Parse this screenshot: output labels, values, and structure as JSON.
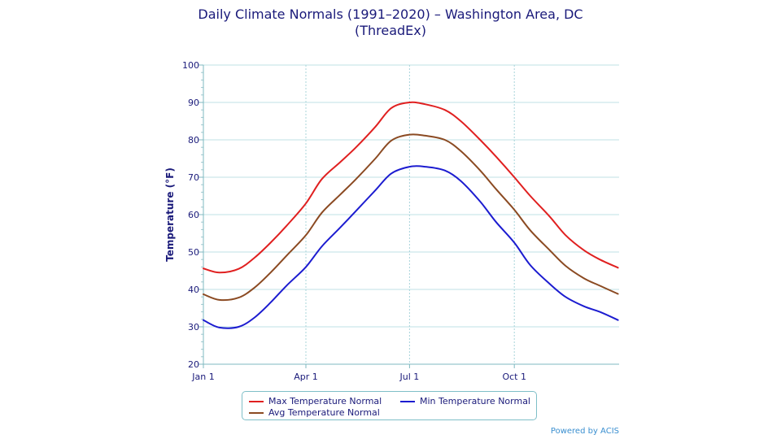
{
  "title_line1": "Daily Climate Normals (1991–2020) – Washington Area, DC",
  "title_line2": "(ThreadEx)",
  "credit": "Powered by ACIS",
  "chart_data": {
    "type": "line",
    "title": "Daily Climate Normals (1991–2020) – Washington Area, DC (ThreadEx)",
    "xlabel": "",
    "ylabel": "Temperature (°F)",
    "ylim": [
      20,
      100
    ],
    "yticks": [
      20,
      30,
      40,
      50,
      60,
      70,
      80,
      90,
      100
    ],
    "x_tick_labels": [
      "Jan 1",
      "Apr 1",
      "Jul 1",
      "Oct 1"
    ],
    "x": [
      "Jan 1",
      "Jan 15",
      "Feb 1",
      "Feb 15",
      "Mar 1",
      "Mar 15",
      "Apr 1",
      "Apr 15",
      "May 1",
      "May 15",
      "Jun 1",
      "Jun 15",
      "Jul 1",
      "Jul 15",
      "Aug 1",
      "Aug 15",
      "Sep 1",
      "Sep 15",
      "Oct 1",
      "Oct 15",
      "Nov 1",
      "Nov 15",
      "Dec 1",
      "Dec 15",
      "Dec 31"
    ],
    "grid": true,
    "legend_position": "bottom",
    "series": [
      {
        "name": "Max Temperature Normal",
        "color": "#e02020",
        "values": [
          45.6,
          44.5,
          45.5,
          48.5,
          52.5,
          57.0,
          63.0,
          69.5,
          74.0,
          78.0,
          83.5,
          88.5,
          90.0,
          89.5,
          88.0,
          85.0,
          80.0,
          75.5,
          70.0,
          65.0,
          59.5,
          54.5,
          50.5,
          48.0,
          45.8
        ]
      },
      {
        "name": "Min Temperature Normal",
        "color": "#1c1cd0",
        "values": [
          31.8,
          29.8,
          30.0,
          32.5,
          36.5,
          41.0,
          46.0,
          51.5,
          56.5,
          61.0,
          66.5,
          71.0,
          72.8,
          72.8,
          71.8,
          69.0,
          63.5,
          58.0,
          52.5,
          46.5,
          41.5,
          38.0,
          35.5,
          34.0,
          31.8
        ]
      },
      {
        "name": "Avg Temperature Normal",
        "color": "#8b4a22",
        "values": [
          38.7,
          37.2,
          37.8,
          40.5,
          44.5,
          49.0,
          54.5,
          60.5,
          65.3,
          69.5,
          75.0,
          79.8,
          81.4,
          81.1,
          80.0,
          77.0,
          71.8,
          66.8,
          61.3,
          55.8,
          50.5,
          46.3,
          43.0,
          41.0,
          38.8
        ]
      }
    ]
  }
}
